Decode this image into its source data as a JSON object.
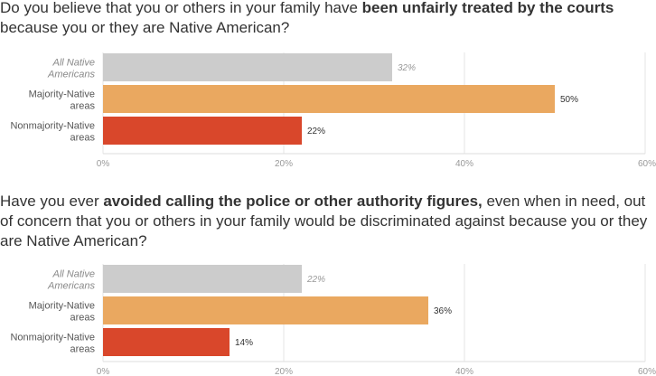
{
  "chart_data": [
    {
      "type": "bar",
      "orientation": "horizontal",
      "title_parts": [
        {
          "text": "Do you believe that you or others in your family have ",
          "bold": false
        },
        {
          "text": "been unfairly treated by the courts",
          "bold": true
        },
        {
          "text": " because you or they are Native American?",
          "bold": false
        }
      ],
      "categories": [
        "All Native Americans",
        "Majority-Native areas",
        "Nonmajority-Native areas"
      ],
      "category_lines": [
        [
          "All Native",
          "Americans"
        ],
        [
          "Majority-Native",
          "areas"
        ],
        [
          "Nonmajority-Native",
          "areas"
        ]
      ],
      "values": [
        32,
        50,
        22
      ],
      "value_labels": [
        "32%",
        "50%",
        "22%"
      ],
      "colors": [
        "#cccccc",
        "#eaa860",
        "#d9472b"
      ],
      "italic": [
        true,
        false,
        false
      ],
      "xlim": [
        0,
        60
      ],
      "ticks": [
        0,
        20,
        40,
        60
      ],
      "tick_labels": [
        "0%",
        "20%",
        "40%",
        "60%"
      ],
      "grid": true
    },
    {
      "type": "bar",
      "orientation": "horizontal",
      "title_parts": [
        {
          "text": "Have you ever ",
          "bold": false
        },
        {
          "text": "avoided calling the police or other authority figures,",
          "bold": true
        },
        {
          "text": " even when in need, out of concern that you or others in your family would be discriminated against because you or they are Native American?",
          "bold": false
        }
      ],
      "categories": [
        "All Native Americans",
        "Majority-Native areas",
        "Nonmajority-Native areas"
      ],
      "category_lines": [
        [
          "All Native",
          "Americans"
        ],
        [
          "Majority-Native",
          "areas"
        ],
        [
          "Nonmajority-Native",
          "areas"
        ]
      ],
      "values": [
        22,
        36,
        14
      ],
      "value_labels": [
        "22%",
        "36%",
        "14%"
      ],
      "colors": [
        "#cccccc",
        "#eaa860",
        "#d9472b"
      ],
      "italic": [
        true,
        false,
        false
      ],
      "xlim": [
        0,
        60
      ],
      "ticks": [
        0,
        20,
        40,
        60
      ],
      "tick_labels": [
        "0%",
        "20%",
        "40%",
        "60%"
      ],
      "grid": true
    }
  ]
}
